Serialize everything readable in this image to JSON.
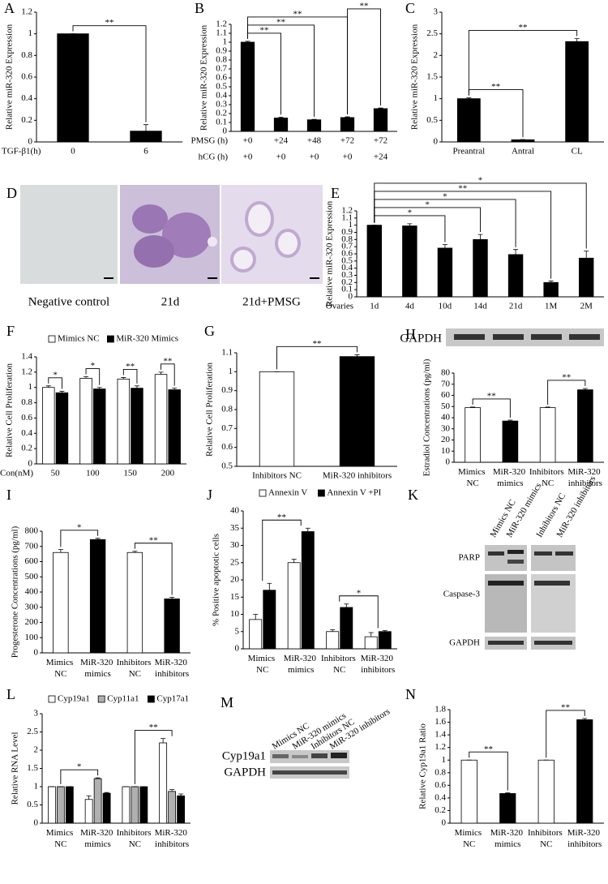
{
  "chart_data": [
    {
      "type": "bar",
      "panel": "A",
      "ylabel": "Relative miR-320 Expression",
      "xlabel": "TGF-β1(h)",
      "categories": [
        "0",
        "6"
      ],
      "series": [
        {
          "colors": [
            "#000000",
            "#000000"
          ],
          "values": [
            1,
            0.1
          ],
          "errors": [
            0,
            0.06
          ]
        }
      ],
      "ylim": [
        0,
        1.2
      ],
      "yticks": [
        0,
        0.2,
        0.4,
        0.6,
        0.8,
        1,
        1.2
      ],
      "brackets": [
        {
          "from": 0,
          "to": 1,
          "text": "**"
        }
      ]
    },
    {
      "type": "bar",
      "panel": "B",
      "ylabel": "Relative miR-320 Expression",
      "xlabel": "PMSG (h)",
      "categories": [
        "+0",
        "+24",
        "+48",
        "+72",
        "+72"
      ],
      "xlabel2": "hCG (h)",
      "categories2": [
        "+0",
        "+0",
        "+0",
        "+0",
        "+24"
      ],
      "series": [
        {
          "colors": [
            "#000000",
            "#000000",
            "#000000",
            "#000000",
            "#000000"
          ],
          "values": [
            1,
            0.15,
            0.13,
            0.155,
            0.255
          ],
          "errors": [
            0.01,
            0.01,
            0.005,
            0.008,
            0.007
          ]
        }
      ],
      "ylim": [
        0,
        1.2
      ],
      "yticks": [
        0,
        0.1,
        0.2,
        0.3,
        0.4,
        0.5,
        0.6,
        0.7,
        0.8,
        0.9,
        1,
        1.1,
        1.2
      ],
      "brackets": [
        {
          "from": 0,
          "to": 1,
          "text": "**"
        },
        {
          "from": 0,
          "to": 2,
          "text": "**"
        },
        {
          "from": 0,
          "to": 3,
          "text": "**"
        },
        {
          "from": 3,
          "to": 4,
          "text": "**"
        }
      ]
    },
    {
      "type": "bar",
      "panel": "C",
      "ylabel": "Relative miR-320 Expression",
      "categories": [
        "Preantral",
        "Antral",
        "CL"
      ],
      "series": [
        {
          "colors": [
            "#000000",
            "#000000",
            "#000000"
          ],
          "values": [
            1,
            0.05,
            2.32
          ],
          "errors": [
            0.02,
            0.005,
            0.07
          ]
        }
      ],
      "ylim": [
        0,
        3
      ],
      "yticks": [
        0,
        0.5,
        1,
        1.5,
        2,
        2.5,
        3
      ],
      "brackets": [
        {
          "from": 0,
          "to": 1,
          "text": "**"
        },
        {
          "from": 0,
          "to": 2,
          "text": "**"
        }
      ]
    },
    {
      "type": "image",
      "panel": "D",
      "labels": [
        "Negative control",
        "21d",
        "21d+PMSG"
      ]
    },
    {
      "type": "bar",
      "panel": "E",
      "ylabel": "Relative miR-320 Expression",
      "xlabel": "Ovaries",
      "categories": [
        "1d",
        "4d",
        "10d",
        "14d",
        "21d",
        "1M",
        "2M"
      ],
      "series": [
        {
          "colors": [
            "#000000",
            "#000000",
            "#000000",
            "#000000",
            "#000000",
            "#000000",
            "#000000"
          ],
          "values": [
            1,
            0.99,
            0.68,
            0.8,
            0.59,
            0.2,
            0.54
          ],
          "errors": [
            0,
            0.03,
            0.05,
            0.07,
            0.07,
            0.02,
            0.1
          ]
        }
      ],
      "ylim": [
        0,
        1.2
      ],
      "yticks": [
        0,
        0.1,
        0.2,
        0.3,
        0.4,
        0.5,
        0.6,
        0.7,
        0.8,
        0.9,
        1,
        1.1,
        1.2
      ],
      "brackets": [
        {
          "from": 0,
          "to": 2,
          "text": "*"
        },
        {
          "from": 0,
          "to": 3,
          "text": "*"
        },
        {
          "from": 0,
          "to": 4,
          "text": "*"
        },
        {
          "from": 0,
          "to": 5,
          "text": "**"
        },
        {
          "from": 0,
          "to": 6,
          "text": "*"
        }
      ]
    },
    {
      "type": "bar",
      "panel": "F",
      "ylabel": "Relative Cell Proliferation",
      "xlabel": "Con(nM)",
      "categories": [
        "50",
        "100",
        "150",
        "200"
      ],
      "legend": "top",
      "series": [
        {
          "name": "Mimics NC",
          "color": "#ffffff",
          "values": [
            1,
            1.12,
            1.11,
            1.17
          ],
          "errors": [
            0.02,
            0.02,
            0.02,
            0.03
          ]
        },
        {
          "name": "MiR-320 Mimics",
          "color": "#000000",
          "values": [
            0.93,
            0.98,
            0.99,
            0.97
          ],
          "errors": [
            0.02,
            0.02,
            0.03,
            0.02
          ]
        }
      ],
      "ylim": [
        0,
        1.4
      ],
      "yticks": [
        0,
        0.2,
        0.4,
        0.6,
        0.8,
        1,
        1.2,
        1.4
      ],
      "brackets": [
        {
          "from": 0,
          "to": 0,
          "text": "*"
        },
        {
          "from": 1,
          "to": 1,
          "text": "*"
        },
        {
          "from": 2,
          "to": 2,
          "text": "**"
        },
        {
          "from": 3,
          "to": 3,
          "text": "**"
        }
      ]
    },
    {
      "type": "bar",
      "panel": "G",
      "ylabel": "Relative Cell Proliferation",
      "categories": [
        "Inhibitors NC",
        "MiR-320 inhibitors"
      ],
      "series": [
        {
          "colors": [
            "#ffffff",
            "#000000"
          ],
          "values": [
            1,
            1.08
          ],
          "errors": [
            0,
            0.01
          ]
        }
      ],
      "ylim": [
        0.5,
        1.1
      ],
      "yticks": [
        0.5,
        0.6,
        0.7,
        0.8,
        0.9,
        1,
        1.1
      ],
      "brackets": [
        {
          "from": 0,
          "to": 1,
          "text": "**"
        }
      ]
    },
    {
      "type": "bar",
      "panel": "H",
      "blot_label": "GAPDH",
      "ylabel": "Estradiol Concentrations (pg/ml)",
      "wrap_labels": true,
      "categories": [
        "Mimics NC",
        "MiR-320 mimics",
        "Inhibitors NC",
        "MiR-320 inhibitors"
      ],
      "series": [
        {
          "colors": [
            "#ffffff",
            "#000000",
            "#ffffff",
            "#000000"
          ],
          "values": [
            49,
            37,
            49,
            65
          ],
          "errors": [
            0.5,
            0.8,
            0.5,
            1.2
          ]
        }
      ],
      "ylim": [
        0,
        80
      ],
      "yticks": [
        0,
        10,
        20,
        30,
        40,
        50,
        60,
        70,
        80
      ],
      "brackets": [
        {
          "from": 0,
          "to": 1,
          "text": "**"
        },
        {
          "from": 2,
          "to": 3,
          "text": "**"
        }
      ]
    },
    {
      "type": "bar",
      "panel": "I",
      "ylabel": "Progesterone Concentrations (pg/ml)",
      "wrap_labels": true,
      "categories": [
        "Mimics NC",
        "MiR-320 mimics",
        "Inhibitors NC",
        "MiR-320 inhibitors"
      ],
      "series": [
        {
          "colors": [
            "#ffffff",
            "#000000",
            "#ffffff",
            "#000000"
          ],
          "values": [
            660,
            745,
            660,
            355
          ],
          "errors": [
            20,
            8,
            8,
            10
          ]
        }
      ],
      "ylim": [
        0,
        800
      ],
      "yticks": [
        0,
        100,
        200,
        300,
        400,
        500,
        600,
        700,
        800
      ],
      "brackets": [
        {
          "from": 0,
          "to": 1,
          "text": "*"
        },
        {
          "from": 2,
          "to": 3,
          "text": "**"
        }
      ]
    },
    {
      "type": "bar",
      "panel": "J",
      "ylabel": "% Positive apoptotic cells",
      "wrap_labels": true,
      "legend": "top",
      "categories": [
        "Mimics NC",
        "MiR-320 mimics",
        "Inhibitors NC",
        "MiR-320 inhibitors"
      ],
      "series": [
        {
          "name": "Annexin V",
          "color": "#ffffff",
          "values": [
            8.5,
            25,
            5,
            3.5
          ],
          "errors": [
            1.5,
            1,
            0.5,
            1.2
          ]
        },
        {
          "name": "Annexin V +PI",
          "color": "#000000",
          "values": [
            17,
            34,
            12,
            5
          ],
          "errors": [
            2,
            1,
            1,
            0.3
          ]
        }
      ],
      "ylim": [
        0,
        40
      ],
      "yticks": [
        0,
        5,
        10,
        15,
        20,
        25,
        30,
        35,
        40
      ],
      "brackets": [
        {
          "from": 0,
          "to": 1,
          "text": "**"
        },
        {
          "from": 2,
          "to": 3,
          "text": "*"
        }
      ]
    },
    {
      "type": "image",
      "panel": "K",
      "lanes": [
        "Mimics NC",
        "MiR-320 mimics",
        "Inhibitors NC",
        "MiR-320 inhibitors"
      ],
      "rows": [
        "PARP",
        "Caspase-3",
        "GAPDH"
      ]
    },
    {
      "type": "bar",
      "panel": "L",
      "ylabel": "Relative RNA Level",
      "wrap_labels": true,
      "legend": "top",
      "categories": [
        "Mimics NC",
        "MiR-320 mimics",
        "Inhibitors NC",
        "MiR-320 inhibitors"
      ],
      "series": [
        {
          "name": "Cyp19a1",
          "color": "#ffffff",
          "values": [
            1,
            0.65,
            1,
            2.2
          ],
          "errors": [
            0,
            0.1,
            0,
            0.12
          ]
        },
        {
          "name": "Cyp11a1",
          "color": "#b0b0b0",
          "values": [
            1,
            1.22,
            1,
            0.87
          ],
          "errors": [
            0,
            0.02,
            0,
            0.05
          ]
        },
        {
          "name": "Cyp17a1",
          "color": "#000000",
          "values": [
            1,
            0.82,
            1,
            0.75
          ],
          "errors": [
            0,
            0.02,
            0,
            0.05
          ]
        }
      ],
      "ylim": [
        0,
        3
      ],
      "yticks": [
        0,
        0.5,
        1,
        1.5,
        2,
        2.5,
        3
      ],
      "brackets": [
        {
          "from": 0,
          "to": 1,
          "text": "*"
        },
        {
          "from": 2,
          "to": 3,
          "text": "**"
        }
      ]
    },
    {
      "type": "image",
      "panel": "M",
      "lanes": [
        "Mimics NC",
        "MiR-320 mimics",
        "Inhibitors NC",
        "MiR-320 inhibitors"
      ],
      "rows": [
        "Cyp19a1",
        "GAPDH"
      ]
    },
    {
      "type": "bar",
      "panel": "N",
      "ylabel": "Relative Cyp19a1 Ratio",
      "wrap_labels": true,
      "categories": [
        "Mimics NC",
        "MiR-320 mimics",
        "Inhibitors NC",
        "MiR-320 inhibitors"
      ],
      "series": [
        {
          "colors": [
            "#ffffff",
            "#000000",
            "#ffffff",
            "#000000"
          ],
          "values": [
            1,
            0.47,
            1,
            1.64
          ],
          "errors": [
            0,
            0.01,
            0,
            0.02
          ]
        }
      ],
      "ylim": [
        0,
        1.8
      ],
      "yticks": [
        0,
        0.2,
        0.4,
        0.6,
        0.8,
        1,
        1.2,
        1.4,
        1.6,
        1.8
      ],
      "brackets": [
        {
          "from": 0,
          "to": 1,
          "text": "**"
        },
        {
          "from": 2,
          "to": 3,
          "text": "**"
        }
      ]
    }
  ]
}
